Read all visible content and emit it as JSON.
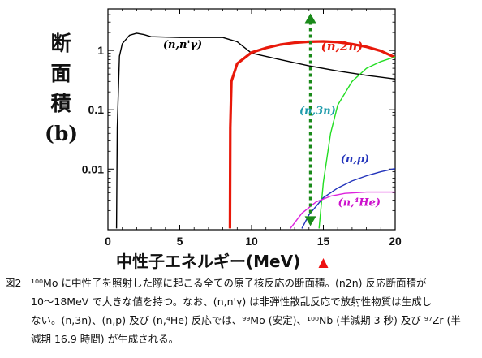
{
  "chart_data": {
    "type": "line",
    "ylabel": "断面積 (b)",
    "ylabel_lines": [
      "断",
      "面",
      "積",
      "(b)"
    ],
    "xlabel": "中性子エネルギー(MeV)",
    "xscale": "linear",
    "yscale": "log",
    "xlim": [
      0,
      20
    ],
    "ylim": [
      0.00095,
      5
    ],
    "x_ticks": [
      0,
      5,
      10,
      15,
      20
    ],
    "y_ticks": [
      {
        "value": 1,
        "label": "1"
      },
      {
        "value": 0.1,
        "label": "0.1"
      },
      {
        "value": 0.01,
        "label": "0.01"
      }
    ],
    "grid": false,
    "legend": "none",
    "series": [
      {
        "name": "(n,n'γ)",
        "color": "#000000",
        "x": [
          0.6,
          0.65,
          0.8,
          1,
          1.5,
          2,
          2.5,
          3,
          5,
          8,
          9,
          10,
          12,
          14,
          16,
          18,
          20
        ],
        "y": [
          0.001,
          0.05,
          0.8,
          1.3,
          1.8,
          1.95,
          1.85,
          1.7,
          1.65,
          1.65,
          1.4,
          0.9,
          0.7,
          0.55,
          0.45,
          0.38,
          0.33
        ]
      },
      {
        "name": "(n,2n)",
        "color": "#e8180a",
        "x": [
          8.5,
          8.52,
          8.6,
          9,
          10,
          11,
          12,
          13,
          14,
          15,
          16,
          17,
          18,
          19,
          20
        ],
        "y": [
          0.001,
          0.05,
          0.3,
          0.6,
          0.92,
          1.1,
          1.25,
          1.35,
          1.4,
          1.42,
          1.38,
          1.28,
          1.15,
          0.98,
          0.76
        ]
      },
      {
        "name": "(n,3n)",
        "color": "#22dd22",
        "x": [
          14.7,
          15,
          15.5,
          16,
          17,
          18,
          19,
          20
        ],
        "y": [
          0.001,
          0.006,
          0.04,
          0.12,
          0.3,
          0.5,
          0.65,
          0.78
        ]
      },
      {
        "name": "(n,p)",
        "color": "#2233bb",
        "x": [
          13.5,
          14,
          15,
          16,
          17,
          18,
          19,
          20
        ],
        "y": [
          0.001,
          0.0017,
          0.0033,
          0.0048,
          0.0063,
          0.0077,
          0.009,
          0.0102
        ]
      },
      {
        "name": "(n,4He)",
        "color": "#dd22dd",
        "x": [
          12.7,
          13.5,
          14.5,
          15.5,
          16.5,
          18,
          20
        ],
        "y": [
          0.001,
          0.0018,
          0.0028,
          0.0035,
          0.0039,
          0.0041,
          0.0041
        ]
      }
    ],
    "annotations": [
      {
        "label": "(n,n'γ)",
        "color": "#000000",
        "x": 5.2,
        "y": 1.1
      },
      {
        "label": "(n,2n)",
        "color": "#e8180a",
        "x": 16.3,
        "y": 1.0
      },
      {
        "label": "(n,3n)",
        "color": "#1a9aaa",
        "x": 14.6,
        "y": 0.085
      },
      {
        "label": "(n,p)",
        "color": "#2233bb",
        "x": 17.2,
        "y": 0.013
      },
      {
        "label": "(n,⁴He)",
        "color": "#cc11cc",
        "x": 17.5,
        "y": 0.0024
      }
    ],
    "marker_arrow": {
      "x": 14.1,
      "y_range": [
        0.0011,
        4.2
      ],
      "color": "#1a8a1a",
      "style": "dotted double-headed arrow"
    },
    "marker_triangle": {
      "x": 15,
      "color": "#ee1111"
    }
  },
  "caption": {
    "figure_id": "図2",
    "line1": "¹⁰⁰Mo に中性子を照射した際に起こる全ての原子核反応の断面積。(n2n) 反応断面積が",
    "line2": "10〜18MeV で大きな値を持つ。なお、(n,n'γ) は非弾性散乱反応で放射性物質は生成し",
    "line3": "ない。(n,3n)、(n,p) 及び (n,⁴He) 反応では、⁹⁹Mo (安定)、¹⁰⁰Nb (半減期 3 秒) 及び ⁹⁷Zr (半",
    "line4": "減期 16.9 時間) が生成される。"
  }
}
